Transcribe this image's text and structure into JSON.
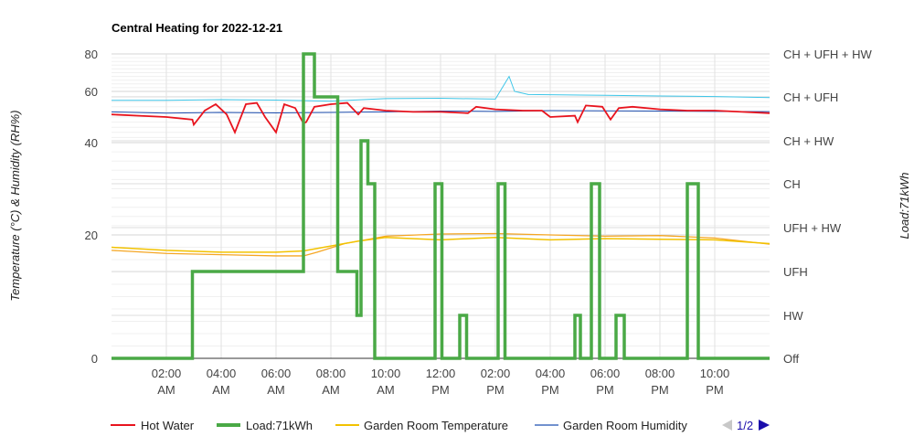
{
  "chart_data": {
    "type": "line",
    "title": "Central Heating for 2022-12-21",
    "ylabel_left": "Temperature (°C) & Humidity (RH%)",
    "ylabel_right": "Load:71kWh",
    "x_tick_labels": [
      [
        "02:00",
        "AM"
      ],
      [
        "04:00",
        "AM"
      ],
      [
        "06:00",
        "AM"
      ],
      [
        "08:00",
        "AM"
      ],
      [
        "10:00",
        "AM"
      ],
      [
        "12:00",
        "PM"
      ],
      [
        "02:00",
        "PM"
      ],
      [
        "04:00",
        "PM"
      ],
      [
        "06:00",
        "PM"
      ],
      [
        "08:00",
        "PM"
      ],
      [
        "10:00",
        "PM"
      ]
    ],
    "x_tick_hours": [
      2,
      4,
      6,
      8,
      10,
      12,
      14,
      16,
      18,
      20,
      22
    ],
    "xlim": [
      0,
      24
    ],
    "y_left_ticks": [
      "80",
      "60",
      "40",
      "20",
      "0"
    ],
    "y_left_tick_values": [
      80,
      60,
      40,
      20,
      0
    ],
    "y_right_ticks": [
      "CH + UFH + HW",
      "CH + UFH",
      "CH + HW",
      "CH",
      "UFH + HW",
      "UFH",
      "HW",
      "Off"
    ],
    "y_right_levels": [
      7,
      6,
      5,
      4,
      3,
      2,
      1,
      0
    ],
    "grid": true,
    "legend_position": "bottom",
    "legend": {
      "items": [
        "Hot Water",
        "Load:71kWh",
        "Garden Room Temperature",
        "Garden Room Humidity"
      ],
      "page": "1/2"
    },
    "colors": {
      "hot_water": "#e8141e",
      "load": "#4aa946",
      "garden_temp": "#f2c200",
      "garden_temp2": "#f5a623",
      "garden_humidity": "#1f4fb0",
      "humidity2": "#3ec6e8"
    },
    "series": [
      {
        "key": "load",
        "name": "Load:71kWh",
        "axis": "right",
        "step": true,
        "x": [
          0,
          2.95,
          7.0,
          7.4,
          8.25,
          8.95,
          9.1,
          9.35,
          9.6,
          11.8,
          12.05,
          12.7,
          12.95,
          14.1,
          14.35,
          16.9,
          17.1,
          17.5,
          17.8,
          18.4,
          18.7,
          21.0,
          21.4
        ],
        "y": [
          0,
          2,
          7,
          6,
          2,
          1,
          5,
          4,
          0,
          4,
          0,
          1,
          0,
          4,
          0,
          1,
          0,
          4,
          0,
          1,
          0,
          4,
          0
        ]
      },
      {
        "key": "hot_water",
        "name": "Hot Water",
        "axis": "left",
        "x": [
          0,
          1,
          2,
          2.95,
          3.0,
          3.4,
          3.8,
          4.2,
          4.5,
          4.9,
          5.3,
          5.6,
          6.0,
          6.3,
          6.7,
          7.0,
          7.1,
          7.4,
          8.0,
          8.6,
          9.0,
          9.2,
          10,
          11,
          12,
          13,
          13.3,
          14,
          15,
          15.7,
          16,
          16.9,
          17.0,
          17.3,
          17.9,
          18.2,
          18.5,
          19,
          20,
          21,
          22,
          23,
          24
        ],
        "y": [
          51,
          50.5,
          50,
          49,
          47,
          52.5,
          55,
          51,
          44,
          55,
          55.5,
          50,
          44,
          55,
          53.5,
          47.5,
          48,
          54,
          55,
          55.5,
          51,
          53.5,
          52.5,
          52,
          52,
          51.5,
          54,
          53,
          52.5,
          52.5,
          50,
          50.5,
          48,
          54.5,
          54,
          49,
          53.5,
          54,
          53,
          52.5,
          52.5,
          52,
          51.5
        ]
      },
      {
        "key": "garden_temp",
        "name": "Garden Room Temperature",
        "axis": "left",
        "x": [
          0,
          2,
          4,
          6,
          7,
          8,
          9,
          10,
          12,
          14,
          16,
          18,
          20,
          22,
          24
        ],
        "y": [
          18,
          17.5,
          17.2,
          17.2,
          17.4,
          18.2,
          19,
          19.6,
          19.2,
          19.6,
          19.2,
          19.4,
          19.3,
          19.2,
          18.6
        ]
      },
      {
        "key": "garden_temp2",
        "name": "",
        "axis": "left",
        "x": [
          0,
          2,
          4,
          6,
          7,
          7.5,
          8.5,
          10,
          12,
          14,
          16,
          18,
          20,
          22,
          24
        ],
        "y": [
          17.5,
          17.0,
          16.8,
          16.6,
          16.6,
          17.2,
          18.6,
          19.8,
          20.2,
          20.3,
          20.0,
          19.8,
          19.9,
          19.5,
          18.5
        ]
      },
      {
        "key": "garden_humidity",
        "name": "Garden Room Humidity",
        "axis": "left",
        "x": [
          0,
          2,
          4,
          6,
          8,
          10,
          12,
          14,
          16,
          18,
          20,
          22,
          24
        ],
        "y": [
          52,
          51.5,
          51.8,
          51.6,
          51.8,
          52,
          52.3,
          52.2,
          52.5,
          52.4,
          52.3,
          52.2,
          52.1
        ]
      },
      {
        "key": "humidity2",
        "name": "",
        "axis": "left",
        "x": [
          0,
          2,
          4,
          6,
          8,
          10,
          12,
          14,
          14.5,
          14.7,
          15.2,
          16,
          18,
          20,
          22,
          24
        ],
        "y": [
          56.5,
          56.5,
          56.8,
          56.6,
          56.2,
          57.2,
          57.3,
          57.0,
          68,
          60,
          58.8,
          58.7,
          58.5,
          58.2,
          58.0,
          57.6
        ]
      }
    ]
  }
}
